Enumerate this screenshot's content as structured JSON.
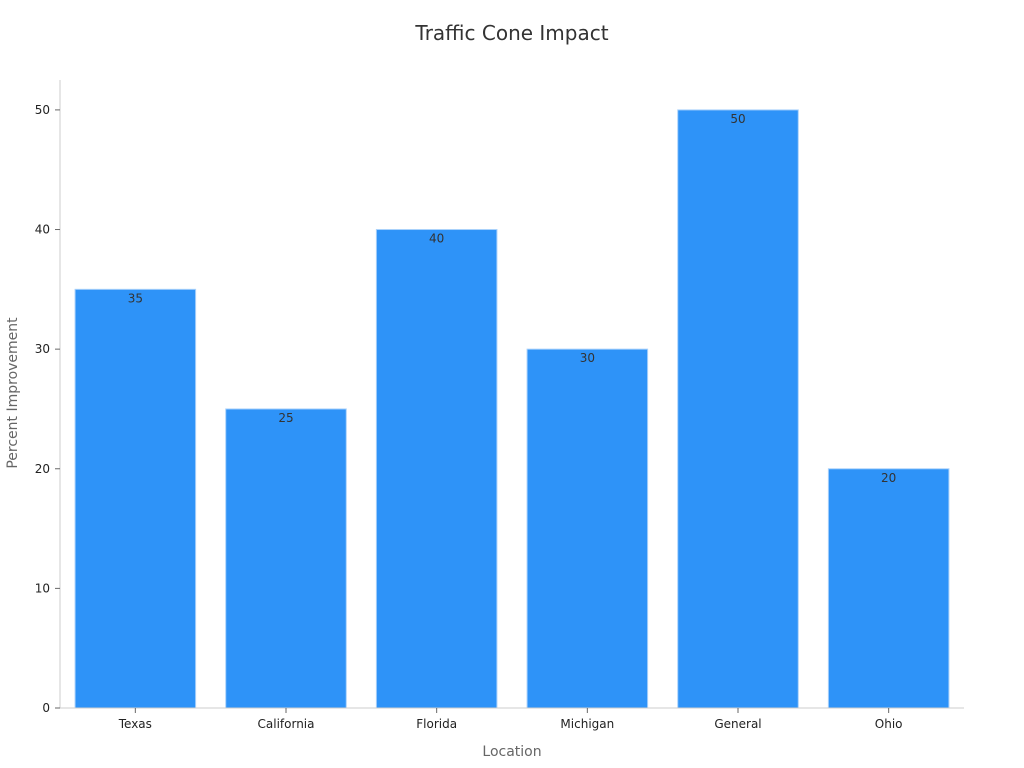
{
  "chart_data": {
    "type": "bar",
    "title": "Traffic Cone Impact",
    "xlabel": "Location",
    "ylabel": "Percent Improvement",
    "categories": [
      "Texas",
      "California",
      "Florida",
      "Michigan",
      "General",
      "Ohio"
    ],
    "values": [
      35,
      25,
      40,
      30,
      50,
      20
    ],
    "data_labels": [
      "35",
      "25",
      "40",
      "30",
      "50",
      "20"
    ],
    "ylim": [
      0,
      52.5
    ],
    "yticks": [
      0,
      10,
      20,
      30,
      40,
      50
    ],
    "ytick_labels": [
      "0",
      "10",
      "20",
      "30",
      "40",
      "50"
    ],
    "grid": false,
    "legend": "none",
    "bar_color": "#2e93f8",
    "bar_edge_color": "#a9d1fb"
  }
}
